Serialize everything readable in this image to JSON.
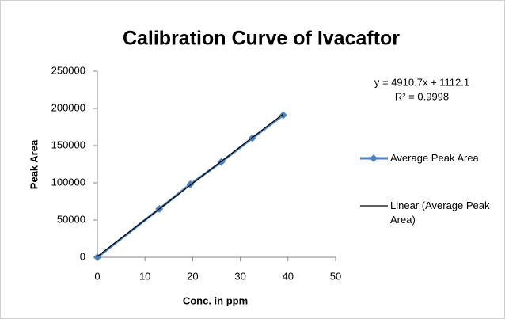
{
  "chart_data": {
    "type": "scatter",
    "title": "Calibration Curve of Ivacaftor",
    "x_label": "Conc. in ppm",
    "y_label": "Peak Area",
    "annotations": [
      "y = 4910.7x + 1112.1",
      "R² = 0.9998"
    ],
    "series": [
      {
        "name": "Average Peak Area",
        "color": "#4f81bd",
        "marker": "diamond",
        "x": [
          0,
          13,
          19.5,
          26,
          32.5,
          39
        ],
        "values": [
          0,
          65000,
          98000,
          128000,
          160000,
          191000
        ]
      },
      {
        "name": "Linear (Average Peak Area)",
        "color": "#000000",
        "marker": "none",
        "x": [
          0,
          39
        ],
        "values": [
          1112,
          192629
        ]
      }
    ],
    "xlim": [
      0,
      50
    ],
    "xticks": [
      0,
      10,
      20,
      30,
      40,
      50
    ],
    "ylim": [
      0,
      250000
    ],
    "yticks": [
      0,
      50000,
      100000,
      150000,
      200000,
      250000
    ],
    "grid": false,
    "legend": "right"
  }
}
